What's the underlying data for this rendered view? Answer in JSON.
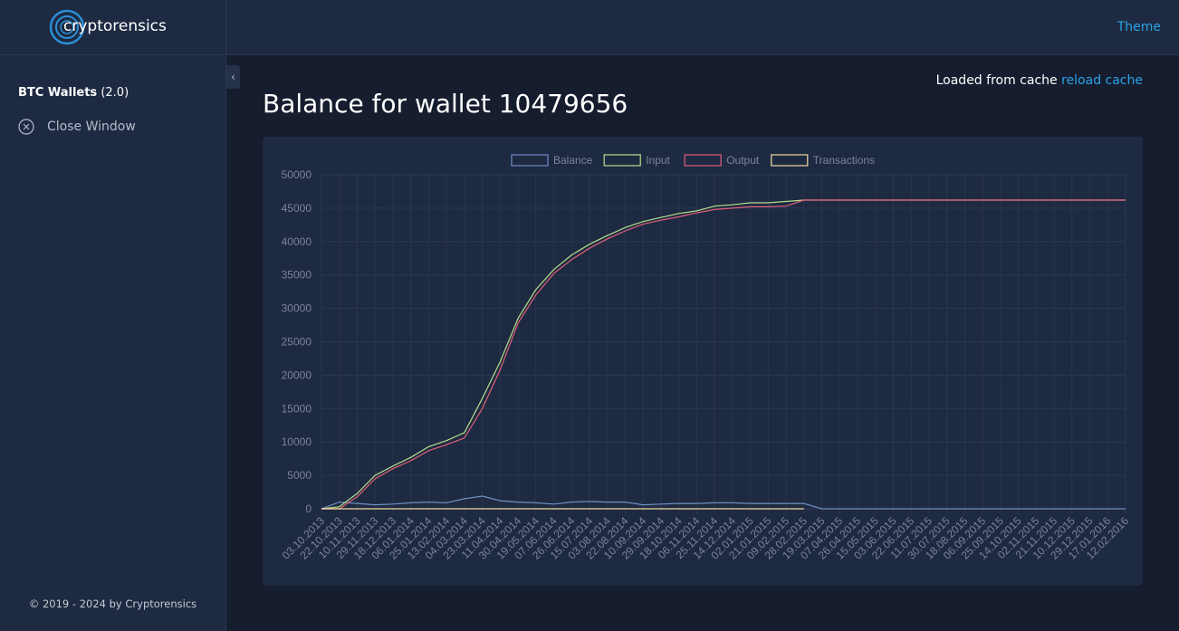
{
  "header": {
    "logo": "cryptorensics",
    "theme": "Theme"
  },
  "sidebar": {
    "wallets": "BTC Wallets",
    "version": "(2.0)",
    "close": "Close Window",
    "footer": "© 2019 - 2024 by Cryptorensics"
  },
  "page": {
    "cache_text": "Loaded from cache",
    "cache_link": "reload cache",
    "title": "Balance for wallet 10479656"
  },
  "chart_data": {
    "type": "line",
    "legend": "top",
    "grid": true,
    "categories": [
      "03.10.2013",
      "22.10.2013",
      "10.11.2013",
      "29.11.2013",
      "18.12.2013",
      "06.01.2014",
      "25.01.2014",
      "13.02.2014",
      "04.03.2014",
      "23.03.2014",
      "11.04.2014",
      "30.04.2014",
      "19.05.2014",
      "07.06.2014",
      "26.06.2014",
      "15.07.2014",
      "03.08.2014",
      "22.08.2014",
      "10.09.2014",
      "29.09.2014",
      "18.10.2014",
      "06.11.2014",
      "25.11.2014",
      "14.12.2014",
      "02.01.2015",
      "21.01.2015",
      "09.02.2015",
      "28.02.2015",
      "19.03.2015",
      "07.04.2015",
      "26.04.2015",
      "15.05.2015",
      "03.06.2015",
      "22.06.2015",
      "11.07.2015",
      "30.07.2015",
      "18.08.2015",
      "06.09.2015",
      "25.09.2015",
      "14.10.2015",
      "02.11.2015",
      "21.11.2015",
      "10.12.2015",
      "29.12.2015",
      "17.01.2016",
      "12.02.2016"
    ],
    "series": [
      {
        "name": "Balance",
        "color": "#6f8fc4",
        "values": [
          0,
          1000,
          800,
          600,
          700,
          900,
          1000,
          900,
          1500,
          1900,
          1200,
          1000,
          900,
          700,
          1000,
          1100,
          1000,
          1000,
          600,
          700,
          800,
          800,
          900,
          900,
          800,
          800,
          800,
          800,
          0,
          0,
          0,
          0,
          0,
          0,
          0,
          0,
          0,
          0,
          0,
          0,
          0,
          0,
          0,
          0,
          0,
          0
        ]
      },
      {
        "name": "Input",
        "color": "#b5e08a",
        "values": [
          0,
          300,
          2300,
          5000,
          6400,
          7700,
          9300,
          10200,
          11400,
          16500,
          22000,
          28500,
          32800,
          35800,
          38000,
          39600,
          40900,
          42100,
          43000,
          43600,
          44200,
          44600,
          45300,
          45500,
          45800,
          45800,
          46000,
          46200,
          46200,
          46200,
          46200,
          46200,
          46200,
          46200,
          46200,
          46200,
          46200,
          46200,
          46200,
          46200,
          46200,
          46200,
          46200,
          46200,
          46200,
          46200
        ]
      },
      {
        "name": "Output",
        "color": "#e0607a",
        "values": [
          0,
          0,
          1800,
          4500,
          6000,
          7200,
          8700,
          9600,
          10600,
          15000,
          20800,
          27800,
          32000,
          35200,
          37300,
          39000,
          40400,
          41600,
          42600,
          43200,
          43700,
          44300,
          44800,
          45000,
          45200,
          45200,
          45300,
          46200,
          46200,
          46200,
          46200,
          46200,
          46200,
          46200,
          46200,
          46200,
          46200,
          46200,
          46200,
          46200,
          46200,
          46200,
          46200,
          46200,
          46200,
          46200
        ]
      },
      {
        "name": "Transactions",
        "color": "#f0dca0",
        "values": [
          0,
          0,
          0,
          0,
          0,
          0,
          0,
          0,
          0,
          0,
          0,
          0,
          0,
          0,
          0,
          0,
          0,
          0,
          0,
          0,
          0,
          0,
          0,
          0,
          0,
          0,
          0,
          0,
          null,
          null,
          null,
          null,
          null,
          null,
          null,
          null,
          null,
          null,
          null,
          null,
          null,
          null,
          null,
          null,
          null,
          null
        ]
      }
    ],
    "ylim": [
      0,
      50000
    ],
    "yticks": [
      0,
      5000,
      10000,
      15000,
      20000,
      25000,
      30000,
      35000,
      40000,
      45000,
      50000
    ]
  }
}
